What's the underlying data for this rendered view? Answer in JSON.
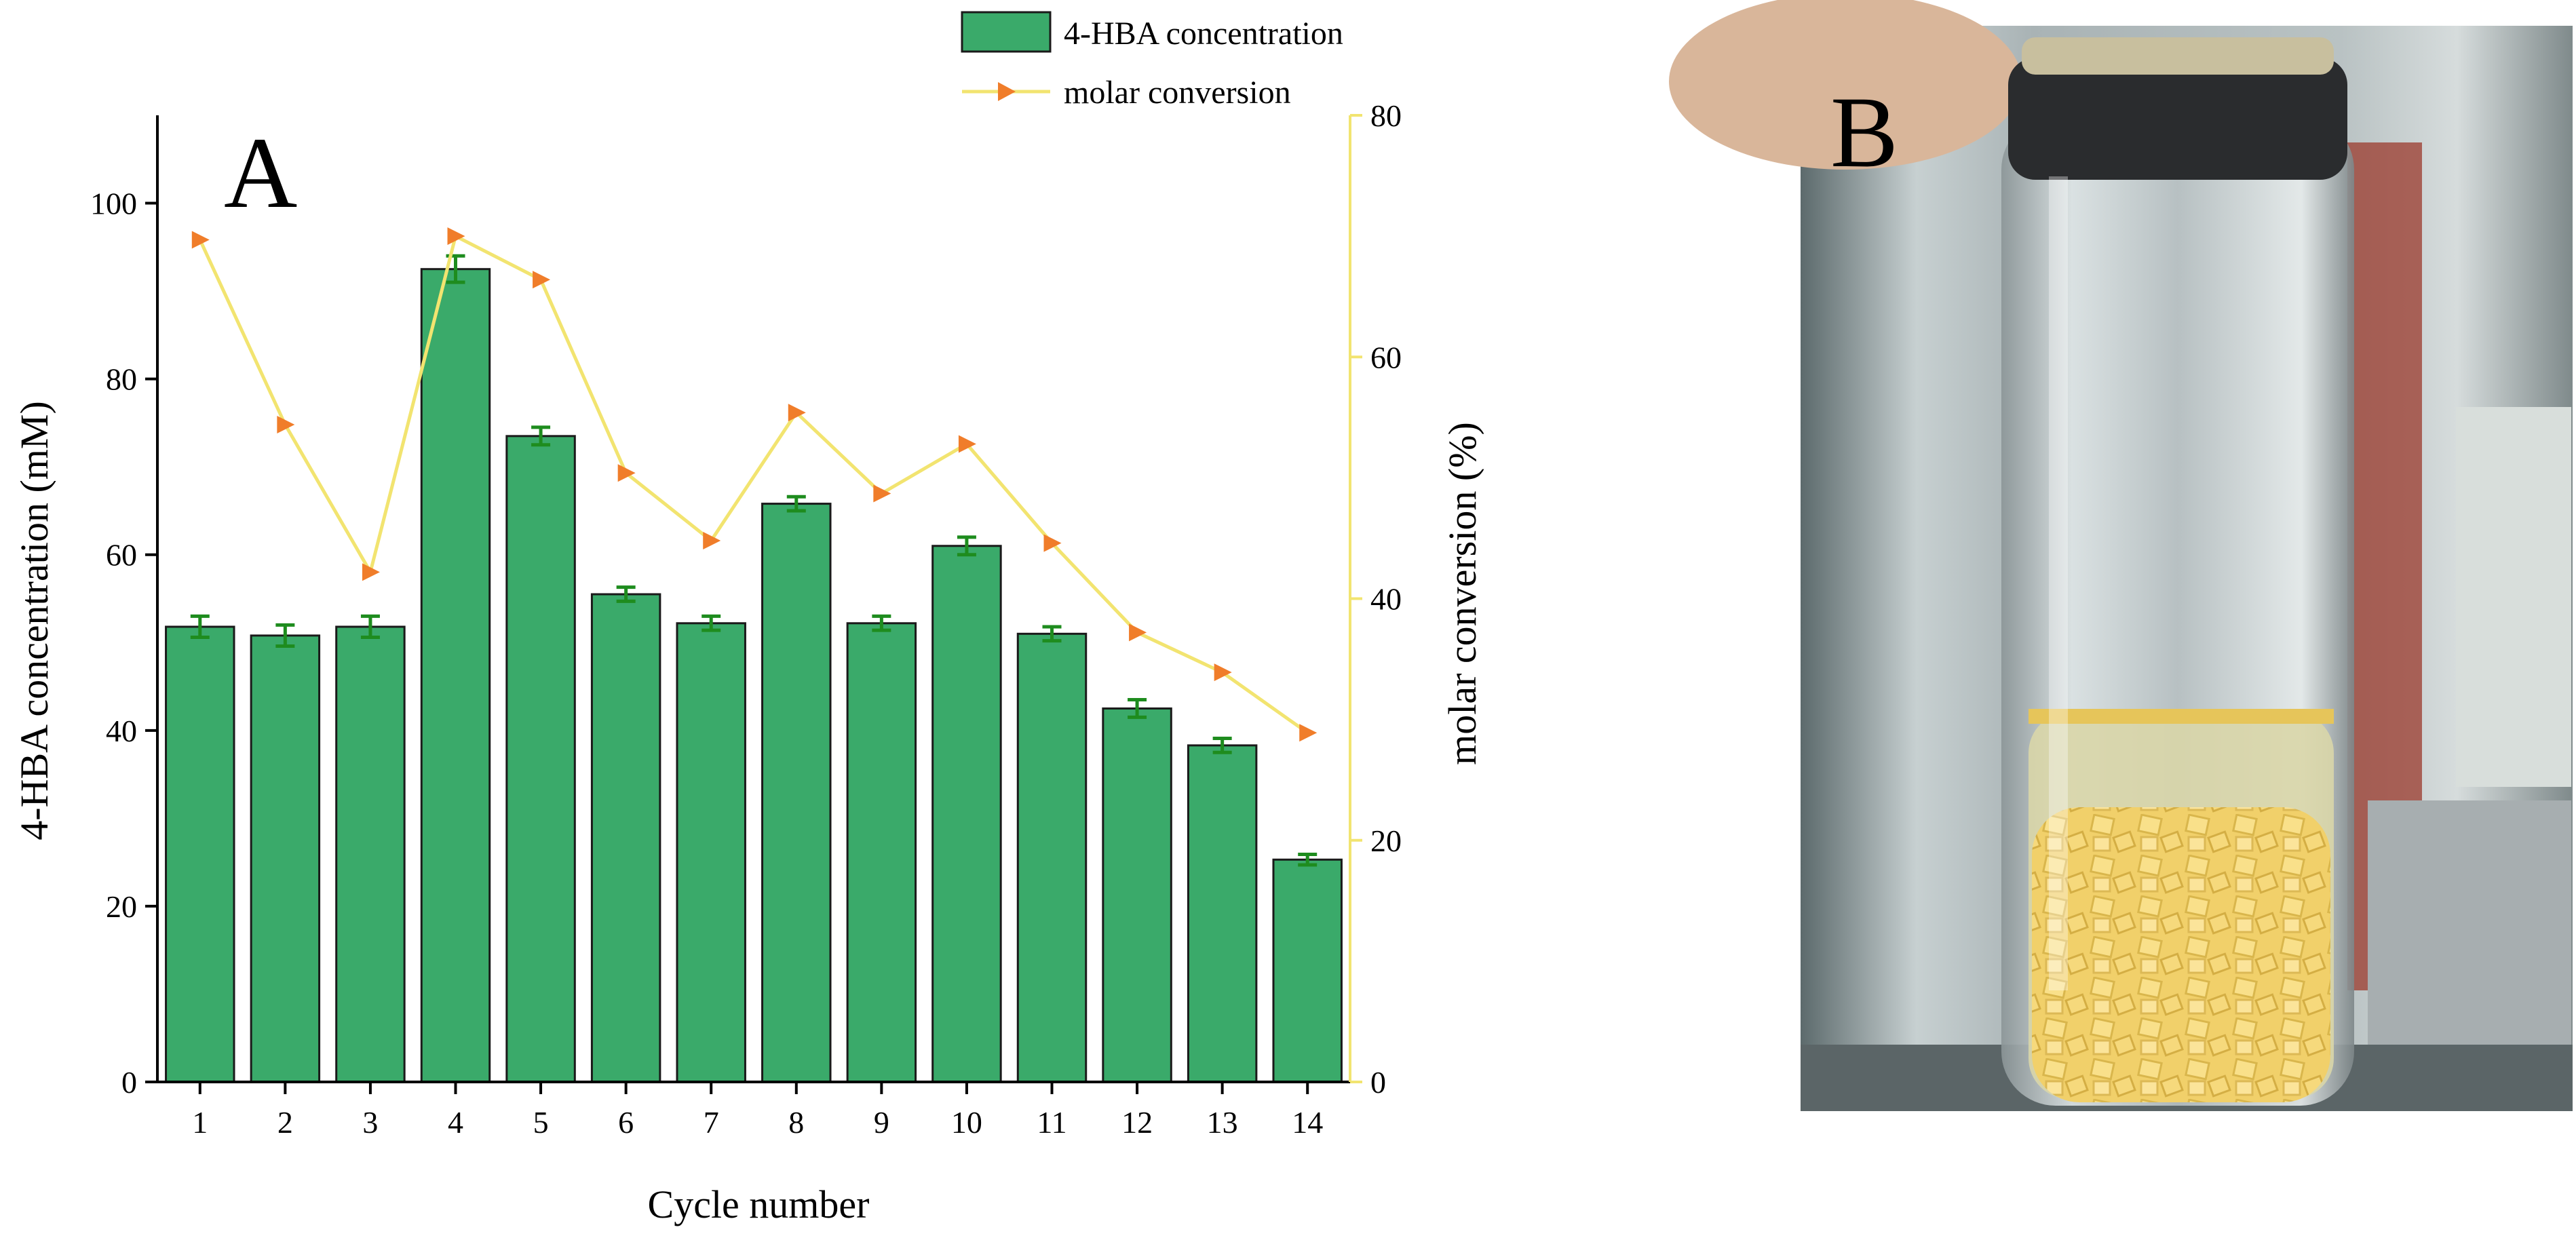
{
  "colors": {
    "bar_fill": "#3aaa6a",
    "bar_stroke": "#1a1a1a",
    "error_bar": "#1e8c1e",
    "line": "#f2e470",
    "marker": "#f07d2a",
    "right_axis": "#f2e470"
  },
  "panel_a": {
    "letter": "A"
  },
  "panel_b": {
    "letter": "B"
  },
  "chart_data": {
    "type": "bar",
    "xlabel": "Cycle number",
    "ylabel": "4-HBA concentration (mM)",
    "y2label": "molar conversion (%)",
    "ylim": [
      0,
      110
    ],
    "y2lim": [
      0,
      80
    ],
    "yticks": [
      0,
      20,
      40,
      60,
      80,
      100
    ],
    "y2ticks": [
      0,
      20,
      40,
      60,
      80
    ],
    "legend_position": "top",
    "categories": [
      "1",
      "2",
      "3",
      "4",
      "5",
      "6",
      "7",
      "8",
      "9",
      "10",
      "11",
      "12",
      "13",
      "14"
    ],
    "series": [
      {
        "name": "4-HBA concentration",
        "type": "bar",
        "axis": "left",
        "values": [
          51.8,
          50.8,
          51.8,
          92.5,
          73.5,
          55.5,
          52.2,
          65.8,
          52.2,
          61.0,
          51.0,
          42.5,
          38.3,
          25.3
        ],
        "errors": [
          1.2,
          1.2,
          1.2,
          1.5,
          1.0,
          0.8,
          0.8,
          0.8,
          0.8,
          1.0,
          0.8,
          1.0,
          0.8,
          0.6
        ]
      },
      {
        "name": "molar conversion",
        "type": "line",
        "axis": "right",
        "values": [
          69.7,
          54.4,
          42.2,
          70.0,
          66.4,
          50.4,
          44.8,
          55.4,
          48.7,
          52.8,
          44.6,
          37.2,
          33.9,
          28.9
        ]
      }
    ]
  },
  "photo_b": {
    "description_icon": "photo-of-glass-vial-with-yellow-cubes",
    "colors": {
      "background": "#8f9b9a",
      "cap": "#2a2c2e",
      "glass": "#c9d2d4",
      "liquid": "#d9d6a8",
      "cubes": "#f3d572"
    }
  }
}
